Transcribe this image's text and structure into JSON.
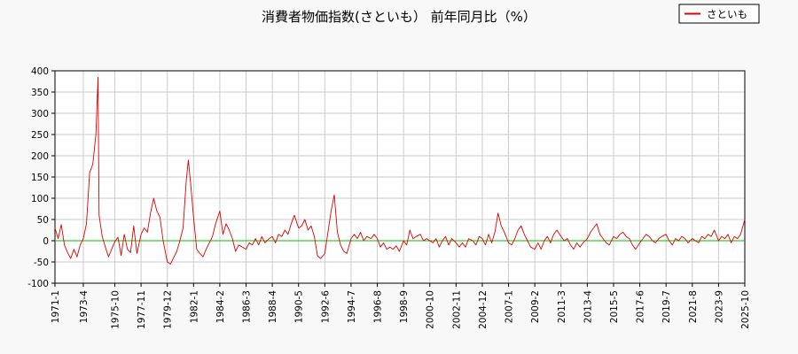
{
  "chart_data": {
    "type": "line",
    "title": "消費者物価指数(さといも） 前年同月比（%）",
    "xlabel": "",
    "ylabel": "",
    "ylim": [
      -100,
      400
    ],
    "yticks": [
      -100,
      -50,
      0,
      50,
      100,
      150,
      200,
      250,
      300,
      350,
      400
    ],
    "xtick_labels": [
      "1971-1",
      "1973-4",
      "1975-10",
      "1977-11",
      "1979-12",
      "1982-1",
      "1984-2",
      "1986-3",
      "1988-4",
      "1990-5",
      "1992-6",
      "1994-7",
      "1996-8",
      "1998-9",
      "2000-10",
      "2002-11",
      "2004-12",
      "2007-1",
      "2009-2",
      "2011-3",
      "2013-4",
      "2015-5",
      "2017-6",
      "2019-7",
      "2021-8",
      "2023-9",
      "2025-10"
    ],
    "grid": true,
    "legend_position": "top-right",
    "zero_line_color": "#00c000",
    "series": [
      {
        "name": "さといも",
        "color": "#e00000",
        "points": [
          [
            "1971-1",
            30
          ],
          [
            "1971-4",
            5
          ],
          [
            "1971-7",
            38
          ],
          [
            "1971-10",
            -10
          ],
          [
            "1972-1",
            -28
          ],
          [
            "1972-4",
            -42
          ],
          [
            "1972-7",
            -20
          ],
          [
            "1972-10",
            -38
          ],
          [
            "1973-1",
            -10
          ],
          [
            "1973-4",
            5
          ],
          [
            "1973-7",
            40
          ],
          [
            "1973-10",
            160
          ],
          [
            "1974-1",
            180
          ],
          [
            "1974-4",
            250
          ],
          [
            "1974-6",
            385
          ],
          [
            "1974-7",
            60
          ],
          [
            "1974-10",
            10
          ],
          [
            "1975-1",
            -15
          ],
          [
            "1975-4",
            -38
          ],
          [
            "1975-7",
            -20
          ],
          [
            "1975-10",
            -2
          ],
          [
            "1976-1",
            8
          ],
          [
            "1976-4",
            -35
          ],
          [
            "1976-7",
            15
          ],
          [
            "1976-10",
            -20
          ],
          [
            "1977-1",
            -28
          ],
          [
            "1977-4",
            35
          ],
          [
            "1977-7",
            -30
          ],
          [
            "1977-11",
            15
          ],
          [
            "1978-2",
            30
          ],
          [
            "1978-5",
            20
          ],
          [
            "1978-8",
            65
          ],
          [
            "1978-11",
            100
          ],
          [
            "1979-2",
            70
          ],
          [
            "1979-5",
            55
          ],
          [
            "1979-8",
            0
          ],
          [
            "1979-12",
            -50
          ],
          [
            "1980-3",
            -55
          ],
          [
            "1980-6",
            -40
          ],
          [
            "1980-9",
            -25
          ],
          [
            "1980-12",
            0
          ],
          [
            "1981-3",
            30
          ],
          [
            "1981-6",
            140
          ],
          [
            "1981-8",
            190
          ],
          [
            "1981-10",
            140
          ],
          [
            "1982-1",
            55
          ],
          [
            "1982-4",
            -20
          ],
          [
            "1982-7",
            -30
          ],
          [
            "1982-10",
            -38
          ],
          [
            "1983-1",
            -20
          ],
          [
            "1983-4",
            -5
          ],
          [
            "1983-7",
            10
          ],
          [
            "1983-10",
            40
          ],
          [
            "1984-2",
            70
          ],
          [
            "1984-5",
            15
          ],
          [
            "1984-8",
            40
          ],
          [
            "1984-11",
            25
          ],
          [
            "1985-2",
            5
          ],
          [
            "1985-5",
            -25
          ],
          [
            "1985-8",
            -10
          ],
          [
            "1986-3",
            -20
          ],
          [
            "1986-6",
            -5
          ],
          [
            "1986-9",
            -10
          ],
          [
            "1986-12",
            5
          ],
          [
            "1987-3",
            -10
          ],
          [
            "1987-6",
            10
          ],
          [
            "1987-9",
            -5
          ],
          [
            "1988-1",
            5
          ],
          [
            "1988-4",
            10
          ],
          [
            "1988-7",
            -5
          ],
          [
            "1988-10",
            15
          ],
          [
            "1989-1",
            10
          ],
          [
            "1989-4",
            25
          ],
          [
            "1989-7",
            15
          ],
          [
            "1989-10",
            40
          ],
          [
            "1990-1",
            60
          ],
          [
            "1990-5",
            30
          ],
          [
            "1990-8",
            35
          ],
          [
            "1990-11",
            50
          ],
          [
            "1991-2",
            25
          ],
          [
            "1991-5",
            35
          ],
          [
            "1991-8",
            10
          ],
          [
            "1991-11",
            -35
          ],
          [
            "1992-2",
            -42
          ],
          [
            "1992-6",
            -30
          ],
          [
            "1992-9",
            20
          ],
          [
            "1992-12",
            70
          ],
          [
            "1993-3",
            108
          ],
          [
            "1993-6",
            20
          ],
          [
            "1993-9",
            -10
          ],
          [
            "1993-12",
            -25
          ],
          [
            "1994-3",
            -30
          ],
          [
            "1994-7",
            5
          ],
          [
            "1994-10",
            15
          ],
          [
            "1995-1",
            5
          ],
          [
            "1995-4",
            20
          ],
          [
            "1995-7",
            0
          ],
          [
            "1995-10",
            10
          ],
          [
            "1996-2",
            5
          ],
          [
            "1996-5",
            15
          ],
          [
            "1996-8",
            5
          ],
          [
            "1996-11",
            -15
          ],
          [
            "1997-2",
            -5
          ],
          [
            "1997-5",
            -20
          ],
          [
            "1997-8",
            -15
          ],
          [
            "1997-11",
            -20
          ],
          [
            "1998-2",
            -12
          ],
          [
            "1998-5",
            -25
          ],
          [
            "1998-9",
            0
          ],
          [
            "1998-12",
            -10
          ],
          [
            "1999-3",
            25
          ],
          [
            "1999-6",
            5
          ],
          [
            "1999-9",
            10
          ],
          [
            "2000-1",
            15
          ],
          [
            "2000-4",
            0
          ],
          [
            "2000-7",
            5
          ],
          [
            "2000-10",
            0
          ],
          [
            "2001-1",
            -5
          ],
          [
            "2001-4",
            5
          ],
          [
            "2001-7",
            -15
          ],
          [
            "2001-10",
            0
          ],
          [
            "2002-1",
            10
          ],
          [
            "2002-4",
            -10
          ],
          [
            "2002-7",
            5
          ],
          [
            "2002-11",
            -5
          ],
          [
            "2003-2",
            -15
          ],
          [
            "2003-5",
            -5
          ],
          [
            "2003-8",
            -15
          ],
          [
            "2003-11",
            5
          ],
          [
            "2004-3",
            0
          ],
          [
            "2004-6",
            -10
          ],
          [
            "2004-9",
            10
          ],
          [
            "2004-12",
            5
          ],
          [
            "2005-3",
            -10
          ],
          [
            "2005-6",
            15
          ],
          [
            "2005-9",
            -5
          ],
          [
            "2005-12",
            20
          ],
          [
            "2006-3",
            65
          ],
          [
            "2006-6",
            35
          ],
          [
            "2006-9",
            20
          ],
          [
            "2007-1",
            -5
          ],
          [
            "2007-4",
            -10
          ],
          [
            "2007-7",
            5
          ],
          [
            "2007-10",
            25
          ],
          [
            "2008-1",
            35
          ],
          [
            "2008-4",
            15
          ],
          [
            "2008-7",
            0
          ],
          [
            "2008-10",
            -15
          ],
          [
            "2009-2",
            -20
          ],
          [
            "2009-5",
            -5
          ],
          [
            "2009-8",
            -20
          ],
          [
            "2009-11",
            0
          ],
          [
            "2010-2",
            10
          ],
          [
            "2010-5",
            -5
          ],
          [
            "2010-8",
            15
          ],
          [
            "2010-11",
            25
          ],
          [
            "2011-3",
            10
          ],
          [
            "2011-6",
            0
          ],
          [
            "2011-9",
            5
          ],
          [
            "2011-12",
            -10
          ],
          [
            "2012-3",
            -20
          ],
          [
            "2012-6",
            -5
          ],
          [
            "2012-9",
            -15
          ],
          [
            "2012-12",
            -5
          ],
          [
            "2013-4",
            5
          ],
          [
            "2013-7",
            20
          ],
          [
            "2013-10",
            30
          ],
          [
            "2014-1",
            40
          ],
          [
            "2014-4",
            15
          ],
          [
            "2014-7",
            5
          ],
          [
            "2014-10",
            -5
          ],
          [
            "2015-1",
            -10
          ],
          [
            "2015-5",
            10
          ],
          [
            "2015-8",
            5
          ],
          [
            "2015-11",
            15
          ],
          [
            "2016-2",
            20
          ],
          [
            "2016-5",
            10
          ],
          [
            "2016-8",
            5
          ],
          [
            "2016-11",
            -10
          ],
          [
            "2017-2",
            -20
          ],
          [
            "2017-6",
            -5
          ],
          [
            "2017-9",
            5
          ],
          [
            "2017-12",
            15
          ],
          [
            "2018-3",
            10
          ],
          [
            "2018-6",
            0
          ],
          [
            "2018-9",
            -5
          ],
          [
            "2018-12",
            5
          ],
          [
            "2019-3",
            10
          ],
          [
            "2019-7",
            15
          ],
          [
            "2019-10",
            0
          ],
          [
            "2020-1",
            -10
          ],
          [
            "2020-4",
            5
          ],
          [
            "2020-7",
            0
          ],
          [
            "2020-10",
            10
          ],
          [
            "2021-1",
            5
          ],
          [
            "2021-4",
            -5
          ],
          [
            "2021-8",
            5
          ],
          [
            "2021-11",
            0
          ],
          [
            "2022-2",
            -5
          ],
          [
            "2022-5",
            10
          ],
          [
            "2022-8",
            5
          ],
          [
            "2022-11",
            15
          ],
          [
            "2023-2",
            10
          ],
          [
            "2023-5",
            25
          ],
          [
            "2023-9",
            0
          ],
          [
            "2023-12",
            10
          ],
          [
            "2024-3",
            5
          ],
          [
            "2024-6",
            15
          ],
          [
            "2024-9",
            -5
          ],
          [
            "2024-12",
            10
          ],
          [
            "2025-3",
            5
          ],
          [
            "2025-6",
            15
          ],
          [
            "2025-10",
            50
          ]
        ]
      }
    ]
  }
}
